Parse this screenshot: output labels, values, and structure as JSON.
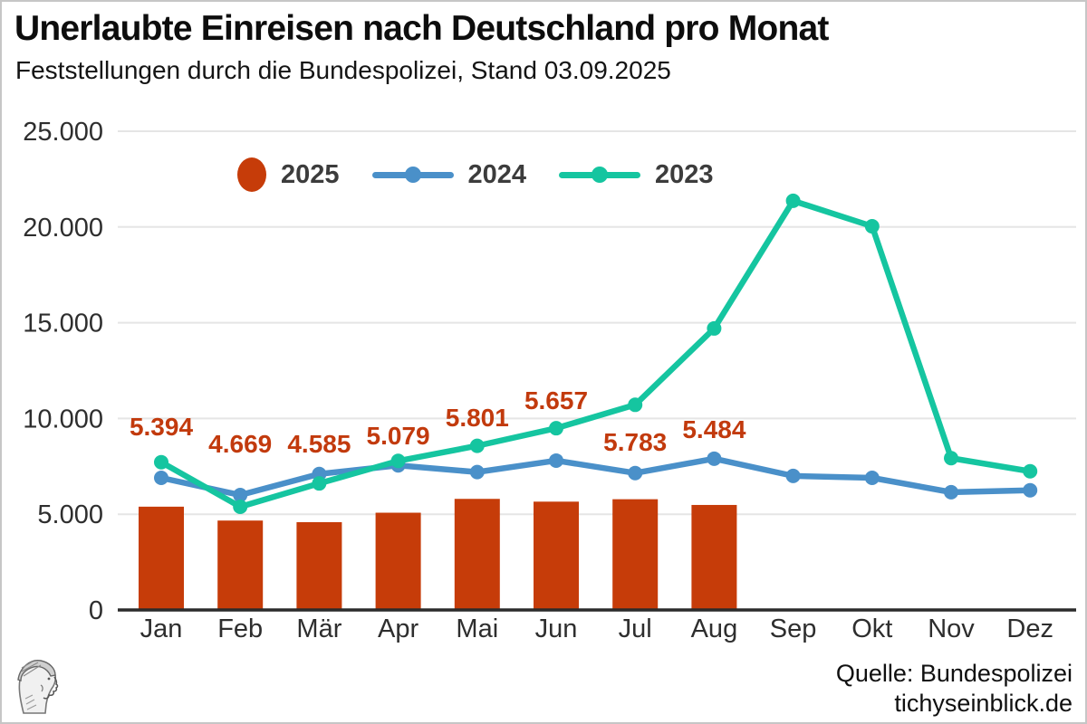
{
  "header": {
    "title": "Unerlaubte Einreisen nach Deutschland pro Monat",
    "subtitle": "Feststellungen durch die Bundespolizei, Stand 03.09.2025"
  },
  "footer": {
    "source": "Quelle: Bundespolizei",
    "website": "tichyseinblick.de"
  },
  "colors": {
    "bar_2025": "#c63c09",
    "line_2024": "#4a90c9",
    "line_2023": "#15c5a0",
    "value_label": "#c23a0d",
    "grid": "#e5e5e5",
    "axis_line": "#2b2b2b",
    "tick_text": "#2e2e2e",
    "legend_text": "#3c3c3c",
    "border": "#c6c6c6"
  },
  "chart_data": {
    "type": "bar",
    "title": "Unerlaubte Einreisen nach Deutschland pro Monat",
    "subtitle": "Feststellungen durch die Bundespolizei, Stand 03.09.2025",
    "categories": [
      "Jan",
      "Feb",
      "Mär",
      "Apr",
      "Mai",
      "Jun",
      "Jul",
      "Aug",
      "Sep",
      "Okt",
      "Nov",
      "Dez"
    ],
    "xlabel": "",
    "ylabel": "",
    "ylim": [
      0,
      25000
    ],
    "grid": true,
    "legend_position": "top",
    "y_tick_values": [
      0,
      5000,
      10000,
      15000,
      20000,
      25000
    ],
    "y_tick_labels": [
      "0",
      "5.000",
      "10.000",
      "15.000",
      "20.000",
      "25.000"
    ],
    "series": [
      {
        "name": "2025",
        "type": "bar",
        "color": "#c63c09",
        "values": [
          5394,
          4669,
          4585,
          5079,
          5801,
          5657,
          5783,
          5484,
          null,
          null,
          null,
          null
        ],
        "value_labels": [
          "5.394",
          "4.669",
          "4.585",
          "5.079",
          "5.801",
          "5.657",
          "5.783",
          "5.484"
        ]
      },
      {
        "name": "2024",
        "type": "line",
        "color": "#4a90c9",
        "values": [
          6900,
          6000,
          7100,
          7550,
          7200,
          7800,
          7150,
          7900,
          7000,
          6900,
          6150,
          6250
        ]
      },
      {
        "name": "2023",
        "type": "line",
        "color": "#15c5a0",
        "values": [
          7717,
          5390,
          6608,
          7784,
          8572,
          9491,
          10714,
          14701,
          21366,
          20035,
          7928,
          7243
        ]
      }
    ]
  }
}
